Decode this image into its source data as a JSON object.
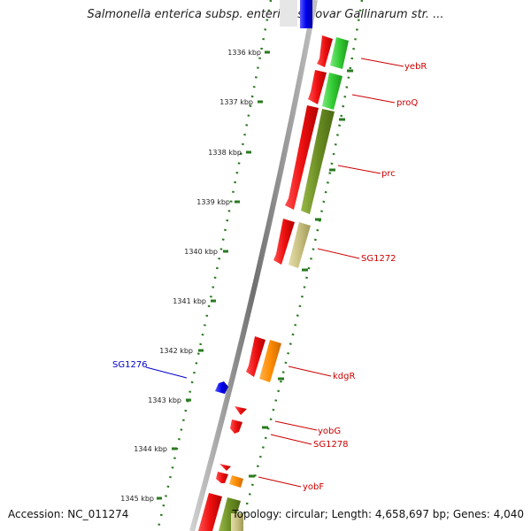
{
  "title": "Salmonella enterica subsp. enterica serovar Gallinarum str. ...",
  "footer": {
    "accession": "Accession: NC_011274",
    "topology": "Topology: circular; Length: 4,658,697 bp; Genes: 4,040"
  },
  "ticks": [
    "1336 kbp",
    "1337 kbp",
    "1338 kbp",
    "1339 kbp",
    "1340 kbp",
    "1341 kbp",
    "1342 kbp",
    "1343 kbp",
    "1344 kbp",
    "1345 kbp"
  ],
  "genes": [
    {
      "name": "yebR",
      "strand": "forward",
      "label_color": "#cc0000"
    },
    {
      "name": "proQ",
      "strand": "forward",
      "label_color": "#cc0000"
    },
    {
      "name": "prc",
      "strand": "forward",
      "label_color": "#cc0000"
    },
    {
      "name": "SG1272",
      "strand": "forward",
      "label_color": "#cc0000"
    },
    {
      "name": "kdgR",
      "strand": "forward",
      "label_color": "#cc0000"
    },
    {
      "name": "yobG",
      "strand": "forward",
      "label_color": "#cc0000"
    },
    {
      "name": "SG1278",
      "strand": "forward",
      "label_color": "#cc0000"
    },
    {
      "name": "yobF",
      "strand": "forward",
      "label_color": "#cc0000"
    },
    {
      "name": "SG1276",
      "strand": "reverse",
      "label_color": "#0000cc"
    }
  ],
  "colors": {
    "cds": "#ff2020",
    "green": "#33cc33",
    "olive": "#6b8e23",
    "khaki": "#c8c080",
    "orange": "#ff8c00",
    "blue": "#0000ee",
    "tick": "#2a7a20",
    "backbone": "#888888"
  }
}
